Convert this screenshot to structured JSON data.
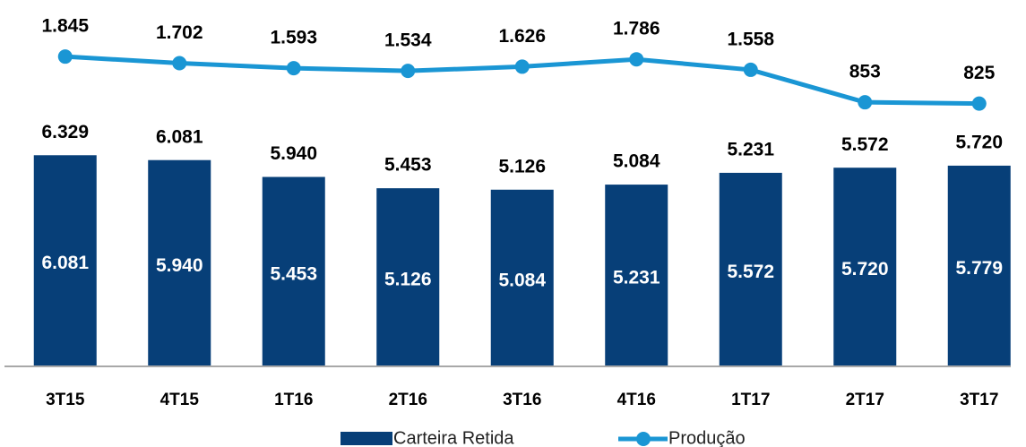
{
  "chart_data": {
    "type": "bar-line",
    "categories": [
      "3T15",
      "4T15",
      "1T16",
      "2T16",
      "3T16",
      "4T16",
      "1T17",
      "2T17",
      "3T17"
    ],
    "series": [
      {
        "name": "Carteira Retida",
        "type": "bar",
        "color": "#073f78",
        "values": [
          6081,
          5940,
          5453,
          5126,
          5084,
          5231,
          5572,
          5720,
          5779
        ],
        "value_labels": [
          "6.081",
          "5.940",
          "5.453",
          "5.126",
          "5.084",
          "5.231",
          "5.572",
          "5.720",
          "5.779"
        ]
      },
      {
        "name": "Produção",
        "type": "line",
        "axis": "y2",
        "color": "#1a96d4",
        "values": [
          1845,
          1702,
          1593,
          1534,
          1626,
          1786,
          1558,
          853,
          825
        ],
        "value_labels": [
          "1.845",
          "1.702",
          "1.593",
          "1.534",
          "1.626",
          "1.786",
          "1.558",
          "853",
          "825"
        ]
      }
    ],
    "annotations": [
      "6.329",
      "6.081",
      "5.940",
      "5.453",
      "5.126",
      "5.084",
      "5.231",
      "5.572",
      "5.720"
    ],
    "ylim": [
      0,
      10570
    ],
    "y2lim": [
      -4864,
      3074
    ]
  }
}
